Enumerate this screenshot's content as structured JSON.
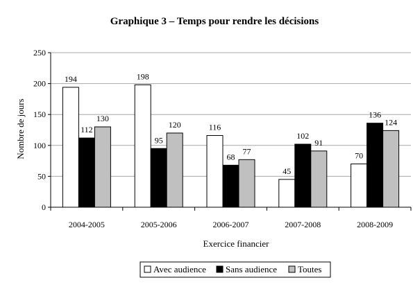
{
  "chart_data": {
    "type": "bar",
    "title": "Graphique 3 – Temps pour rendre les décisions",
    "xlabel": "Exercice financier",
    "ylabel": "Nombre de jours",
    "ylim": [
      0,
      250
    ],
    "yticks": [
      0,
      50,
      100,
      150,
      200,
      250
    ],
    "grid": true,
    "legend_position": "bottom",
    "categories": [
      "2004-2005",
      "2005-2006",
      "2006-2007",
      "2007-2008",
      "2008-2009"
    ],
    "series": [
      {
        "name": "Avec audience",
        "values": [
          194,
          198,
          116,
          45,
          70
        ],
        "color": "#ffffff"
      },
      {
        "name": "Sans audience",
        "values": [
          112,
          95,
          68,
          102,
          136
        ],
        "color": "#000000"
      },
      {
        "name": "Toutes",
        "values": [
          130,
          120,
          77,
          91,
          124
        ],
        "color": "#c0c0c0"
      }
    ]
  }
}
